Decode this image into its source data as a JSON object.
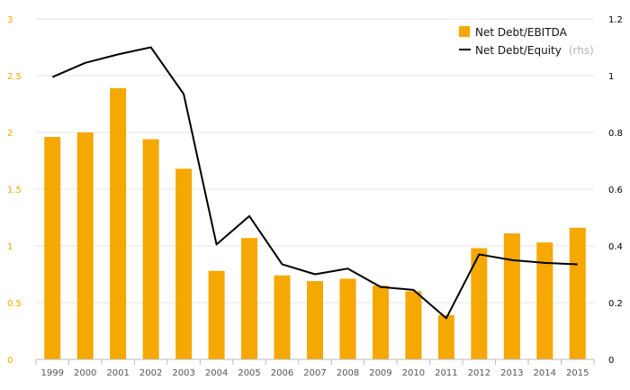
{
  "chart_data": {
    "type": "bar",
    "categories": [
      "1999",
      "2000",
      "2001",
      "2002",
      "2003",
      "2004",
      "2005",
      "2006",
      "2007",
      "2008",
      "2009",
      "2010",
      "2011",
      "2012",
      "2013",
      "2014",
      "2015"
    ],
    "series": [
      {
        "name": "Net Debt/EBITDA",
        "type": "bar",
        "axis": "left",
        "color": "#f5a800",
        "values": [
          1.96,
          2.0,
          2.39,
          1.94,
          1.68,
          0.78,
          1.07,
          0.74,
          0.69,
          0.71,
          0.65,
          0.6,
          0.39,
          0.98,
          1.11,
          1.03,
          1.16
        ]
      },
      {
        "name": "Net Debt/Equity",
        "type": "line",
        "axis": "right",
        "color": "#000000",
        "values": [
          0.995,
          1.045,
          1.075,
          1.1,
          0.935,
          0.405,
          0.505,
          0.335,
          0.3,
          0.32,
          0.255,
          0.245,
          0.145,
          0.37,
          0.35,
          0.34,
          0.335
        ]
      }
    ],
    "legend": [
      {
        "label": "Net Debt/EBITDA",
        "note": ""
      },
      {
        "label": "Net Debt/Equity",
        "note": "(rhs)"
      }
    ],
    "legend_position": "top-right",
    "ylim": [
      0,
      3
    ],
    "yticks": [
      "0",
      "0.5",
      "1",
      "1.5",
      "2",
      "2.5",
      "3"
    ],
    "ylim_right": [
      0,
      1.2
    ],
    "yticks_right": [
      "0",
      "0.2",
      "0.4",
      "0.6",
      "0.8",
      "1",
      "1.2"
    ],
    "grid": true
  }
}
